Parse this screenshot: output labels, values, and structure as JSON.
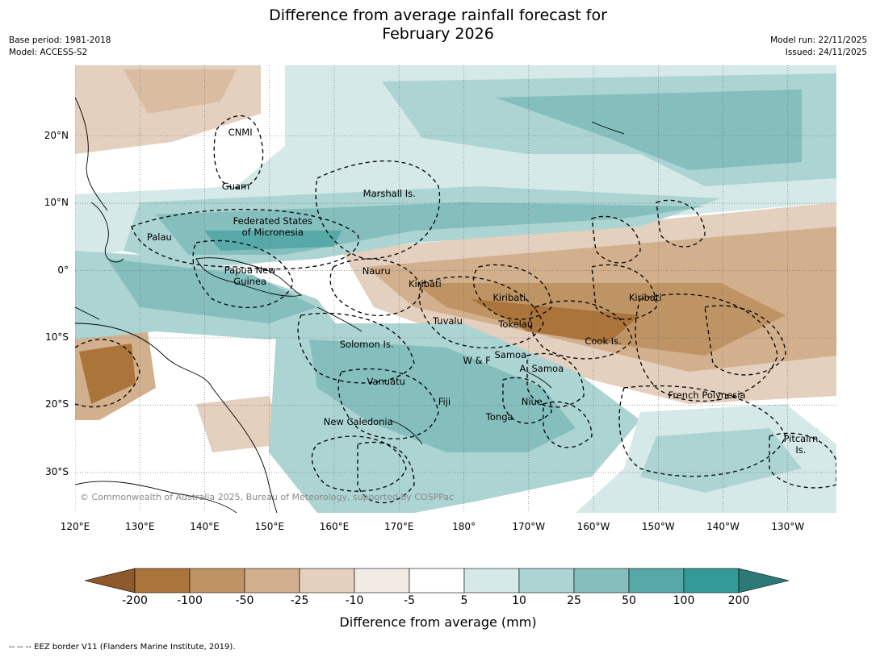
{
  "title_lines": [
    "Difference from average rainfall forecast for",
    "February 2026"
  ],
  "meta_left": {
    "base_period": "Base period: 1981-2018",
    "model": "Model: ACCESS-S2"
  },
  "meta_right": {
    "model_run": "Model run: 22/11/2025",
    "issued": "Issued: 24/11/2025"
  },
  "lat_ticks": [
    {
      "lat": 20,
      "label": "20°N"
    },
    {
      "lat": 10,
      "label": "10°N"
    },
    {
      "lat": 0,
      "label": "0°"
    },
    {
      "lat": -10,
      "label": "10°S"
    },
    {
      "lat": -20,
      "label": "20°S"
    },
    {
      "lat": -30,
      "label": "30°S"
    }
  ],
  "lon_ticks": [
    {
      "lon": 120,
      "label": "120°E"
    },
    {
      "lon": 130,
      "label": "130°E"
    },
    {
      "lon": 140,
      "label": "140°E"
    },
    {
      "lon": 150,
      "label": "150°E"
    },
    {
      "lon": 160,
      "label": "160°E"
    },
    {
      "lon": 170,
      "label": "170°E"
    },
    {
      "lon": 180,
      "label": "180°"
    },
    {
      "lon": 190,
      "label": "170°W"
    },
    {
      "lon": 200,
      "label": "160°W"
    },
    {
      "lon": 210,
      "label": "150°W"
    },
    {
      "lon": 220,
      "label": "140°W"
    },
    {
      "lon": 230,
      "label": "130°W"
    }
  ],
  "map_extent": {
    "lon_min": 120,
    "lon_max": 237.5,
    "lat_min": -36,
    "lat_max": 30.5
  },
  "country_labels": [
    {
      "name": "CNMI",
      "lon": 145.5,
      "lat": 20.5
    },
    {
      "name": "Guam",
      "lon": 144.8,
      "lat": 12.5
    },
    {
      "name": "Marshall Is.",
      "lon": 168.5,
      "lat": 11.5
    },
    {
      "name": "Federated States\nof Micronesia",
      "lon": 150.5,
      "lat": 6.5
    },
    {
      "name": "Palau",
      "lon": 133,
      "lat": 5
    },
    {
      "name": "Papua New\nGuinea",
      "lon": 147,
      "lat": -0.8
    },
    {
      "name": "Nauru",
      "lon": 166.5,
      "lat": 0
    },
    {
      "name": "Kiribati",
      "lon": 174,
      "lat": -2
    },
    {
      "name": "Kiribati",
      "lon": 187,
      "lat": -4
    },
    {
      "name": "Kiribati",
      "lon": 208,
      "lat": -4
    },
    {
      "name": "Tuvalu",
      "lon": 177.5,
      "lat": -7.5
    },
    {
      "name": "Tokelau",
      "lon": 188,
      "lat": -8
    },
    {
      "name": "Cook Is.",
      "lon": 201.5,
      "lat": -10.5
    },
    {
      "name": "Solomon Is.",
      "lon": 165,
      "lat": -11
    },
    {
      "name": "W & F",
      "lon": 182,
      "lat": -13.3
    },
    {
      "name": "Samoa",
      "lon": 187.2,
      "lat": -12.5
    },
    {
      "name": "A. Samoa",
      "lon": 192,
      "lat": -14.5
    },
    {
      "name": "Vanuatu",
      "lon": 168,
      "lat": -16.5
    },
    {
      "name": "Fiji",
      "lon": 177,
      "lat": -19.5
    },
    {
      "name": "Niue",
      "lon": 190.5,
      "lat": -19.5
    },
    {
      "name": "Tonga",
      "lon": 185.5,
      "lat": -21.8
    },
    {
      "name": "French Polynesia",
      "lon": 217.5,
      "lat": -18.5
    },
    {
      "name": "New Caledonia",
      "lon": 163.7,
      "lat": -22.5
    },
    {
      "name": "Pitcairn\nIs.",
      "lon": 232,
      "lat": -25.8
    }
  ],
  "copyright": "© Commonwealth of Australia 2025, Bureau of Meteorology, supported by COSPPac",
  "colorbar": {
    "labels": [
      "-200",
      "-100",
      "-50",
      "-25",
      "-10",
      "-5",
      "5",
      "10",
      "25",
      "50",
      "100",
      "200"
    ],
    "colors": [
      "#8e5a2b",
      "#ab743a",
      "#bf9465",
      "#d3b08d",
      "#e4d0be",
      "#f1ebe4",
      "#ffffff",
      "#d4e9e8",
      "#acd4d2",
      "#84bfbd",
      "#57a9a8",
      "#339a98",
      "#2d7977"
    ],
    "title": "Difference from average (mm)"
  },
  "footer": "--  --  -- EEZ border V11 (Flanders Marine Institute, 2019)."
}
